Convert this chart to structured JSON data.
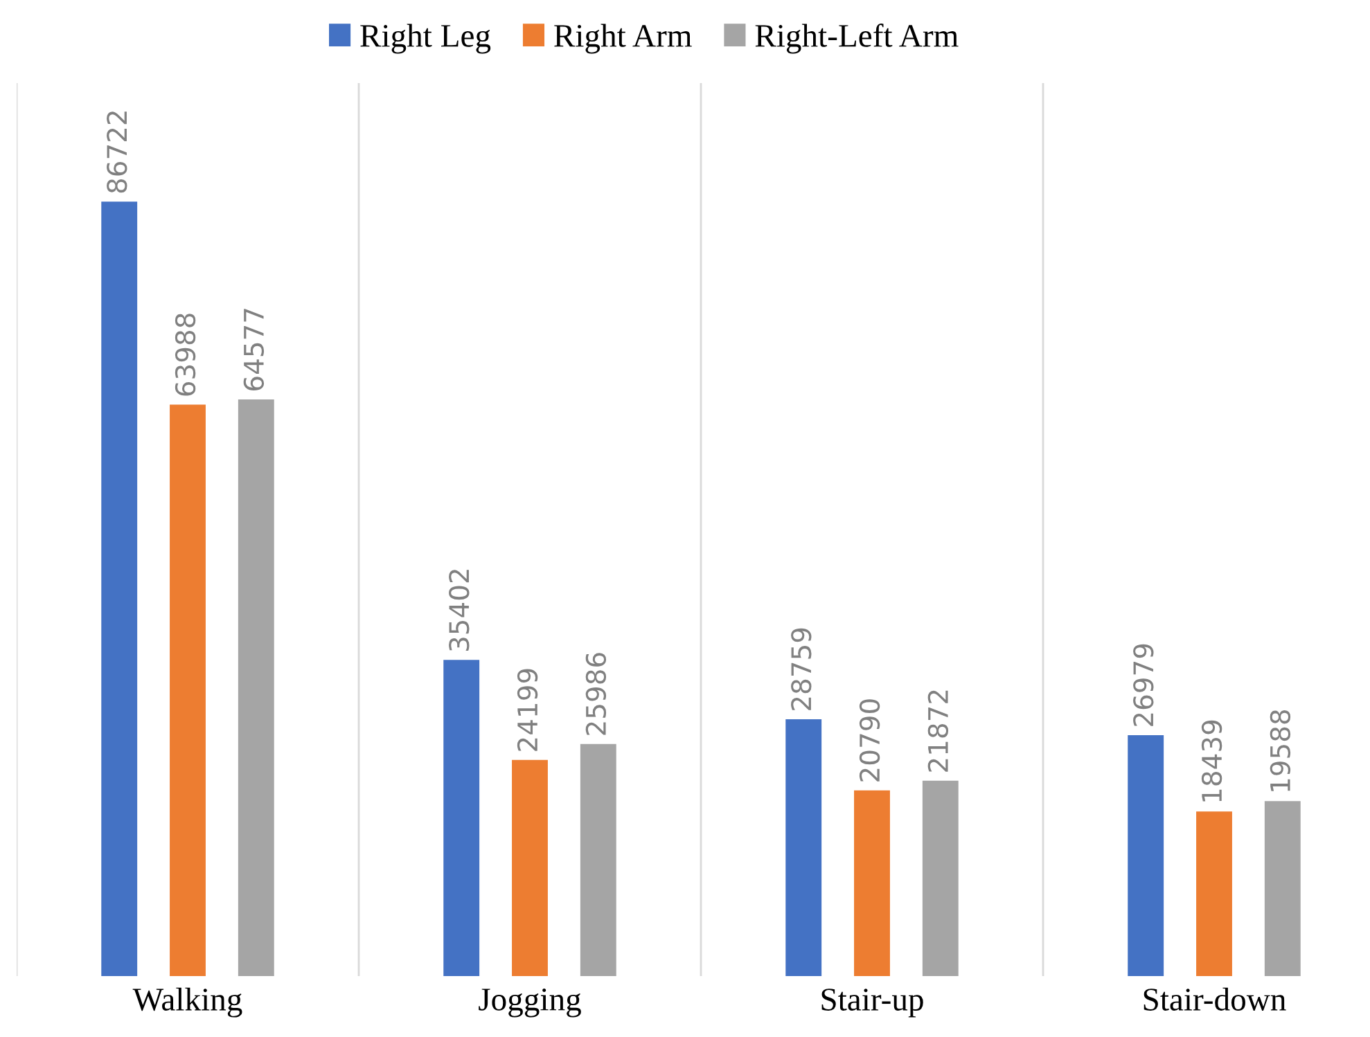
{
  "chart_data": {
    "type": "bar",
    "categories": [
      "Walking",
      "Jogging",
      "Stair-up",
      "Stair-down"
    ],
    "series": [
      {
        "name": "Right Leg",
        "color": "#4472c4",
        "values": [
          86722,
          35402,
          28759,
          26979
        ]
      },
      {
        "name": "Right Arm",
        "color": "#ed7d31",
        "values": [
          63988,
          24199,
          20790,
          18439
        ]
      },
      {
        "name": "Right-Left Arm",
        "color": "#a5a5a5",
        "values": [
          64577,
          25986,
          21872,
          19588
        ]
      }
    ],
    "ylim": [
      0,
      100000
    ],
    "data_labels": true,
    "grid": "x",
    "legend": "top",
    "tick_labels": "x"
  }
}
